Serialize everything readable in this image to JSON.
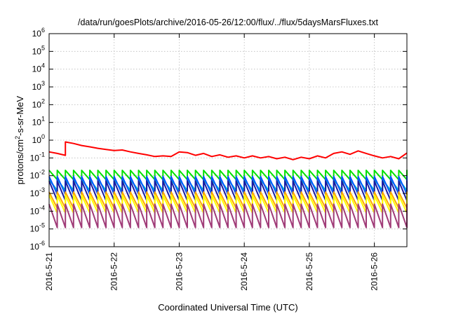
{
  "chart_data": {
    "type": "line",
    "title": "/data/run/goesPlots/archive/2016-05-26/12:00/flux/../flux/5daysMarsFluxes.txt",
    "xlabel": "Coordinated Universal Time (UTC)",
    "ylabel": "protons/cm2-s-sr-MeV",
    "ylabel_parts": [
      "protons/cm",
      "2",
      "-s-sr-MeV"
    ],
    "yscale": "log",
    "ylim": [
      1e-06,
      1000000.0
    ],
    "y_ticks": [
      {
        "value": 1e-06,
        "base": "10",
        "exp": "-6"
      },
      {
        "value": 1e-05,
        "base": "10",
        "exp": "-5"
      },
      {
        "value": 0.0001,
        "base": "10",
        "exp": "-4"
      },
      {
        "value": 0.001,
        "base": "10",
        "exp": "-3"
      },
      {
        "value": 0.01,
        "base": "10",
        "exp": "-2"
      },
      {
        "value": 0.1,
        "base": "10",
        "exp": "-1"
      },
      {
        "value": 1.0,
        "base": "10",
        "exp": "0"
      },
      {
        "value": 10.0,
        "base": "10",
        "exp": "1"
      },
      {
        "value": 100.0,
        "base": "10",
        "exp": "2"
      },
      {
        "value": 1000.0,
        "base": "10",
        "exp": "3"
      },
      {
        "value": 10000.0,
        "base": "10",
        "exp": "4"
      },
      {
        "value": 100000.0,
        "base": "10",
        "exp": "5"
      },
      {
        "value": 1000000.0,
        "base": "10",
        "exp": "6"
      }
    ],
    "xlim": [
      "2016-05-21T00:00",
      "2016-05-26T12:00"
    ],
    "x_ticks": [
      {
        "value": "2016-05-21T00:00",
        "label": "2016-5-21"
      },
      {
        "value": "2016-05-22T00:00",
        "label": "2016-5-22"
      },
      {
        "value": "2016-05-23T00:00",
        "label": "2016-5-23"
      },
      {
        "value": "2016-05-24T00:00",
        "label": "2016-5-24"
      },
      {
        "value": "2016-05-25T00:00",
        "label": "2016-5-25"
      },
      {
        "value": "2016-05-26T00:00",
        "label": "2016-5-26"
      }
    ],
    "grid": true,
    "legend": "none",
    "series": [
      {
        "color": "#ff0000",
        "points": [
          [
            "2016-05-21T00:00",
            0.22
          ],
          [
            "2016-05-21T03:00",
            0.18
          ],
          [
            "2016-05-21T06:00",
            0.14
          ],
          [
            "2016-05-21T06:00",
            0.8
          ],
          [
            "2016-05-21T09:00",
            0.65
          ],
          [
            "2016-05-21T12:00",
            0.5
          ],
          [
            "2016-05-21T15:00",
            0.42
          ],
          [
            "2016-05-21T18:00",
            0.35
          ],
          [
            "2016-05-21T21:00",
            0.3
          ],
          [
            "2016-05-22T00:00",
            0.26
          ],
          [
            "2016-05-22T03:00",
            0.28
          ],
          [
            "2016-05-22T06:00",
            0.22
          ],
          [
            "2016-05-22T09:00",
            0.18
          ],
          [
            "2016-05-22T12:00",
            0.15
          ],
          [
            "2016-05-22T15:00",
            0.12
          ],
          [
            "2016-05-22T18:00",
            0.13
          ],
          [
            "2016-05-22T21:00",
            0.12
          ],
          [
            "2016-05-23T00:00",
            0.22
          ],
          [
            "2016-05-23T03:00",
            0.2
          ],
          [
            "2016-05-23T06:00",
            0.14
          ],
          [
            "2016-05-23T09:00",
            0.18
          ],
          [
            "2016-05-23T12:00",
            0.12
          ],
          [
            "2016-05-23T15:00",
            0.15
          ],
          [
            "2016-05-23T18:00",
            0.11
          ],
          [
            "2016-05-23T21:00",
            0.13
          ],
          [
            "2016-05-24T00:00",
            0.1
          ],
          [
            "2016-05-24T03:00",
            0.13
          ],
          [
            "2016-05-24T06:00",
            0.1
          ],
          [
            "2016-05-24T09:00",
            0.12
          ],
          [
            "2016-05-24T12:00",
            0.09
          ],
          [
            "2016-05-24T15:00",
            0.11
          ],
          [
            "2016-05-24T18:00",
            0.08
          ],
          [
            "2016-05-24T21:00",
            0.11
          ],
          [
            "2016-05-25T00:00",
            0.09
          ],
          [
            "2016-05-25T03:00",
            0.13
          ],
          [
            "2016-05-25T06:00",
            0.1
          ],
          [
            "2016-05-25T09:00",
            0.18
          ],
          [
            "2016-05-25T12:00",
            0.22
          ],
          [
            "2016-05-25T15:00",
            0.16
          ],
          [
            "2016-05-25T18:00",
            0.25
          ],
          [
            "2016-05-25T21:00",
            0.18
          ],
          [
            "2016-05-26T00:00",
            0.13
          ],
          [
            "2016-05-26T03:00",
            0.1
          ],
          [
            "2016-05-26T06:00",
            0.12
          ],
          [
            "2016-05-26T09:00",
            0.09
          ],
          [
            "2016-05-26T12:00",
            0.19
          ]
        ]
      },
      {
        "color": "#00e000",
        "period_hours": 3,
        "start": "2016-05-21T00:00",
        "peak": 0.02,
        "trough": 0.006
      },
      {
        "color": "#00c8c8",
        "period_hours": 3,
        "start": "2016-05-21T00:00",
        "peak": 0.006,
        "trough": 0.0015
      },
      {
        "color": "#0055ff",
        "period_hours": 3,
        "start": "2016-05-21T00:00",
        "peak": 0.009,
        "trough": 0.0009
      },
      {
        "color": "#1a1aa0",
        "period_hours": 3,
        "start": "2016-05-21T00:00",
        "peak": 0.005,
        "trough": 0.0004
      },
      {
        "color": "#ffa800",
        "period_hours": 3,
        "start": "2016-05-21T00:00",
        "peak": 0.0012,
        "trough": 0.00015
      },
      {
        "color": "#ffff00",
        "period_hours": 3,
        "start": "2016-05-21T00:00",
        "peak": 0.0008,
        "trough": 8e-05
      },
      {
        "color": "#a03c78",
        "period_hours": 3,
        "start": "2016-05-21T00:00",
        "peak": 0.00025,
        "trough": 1.2e-05
      }
    ]
  }
}
